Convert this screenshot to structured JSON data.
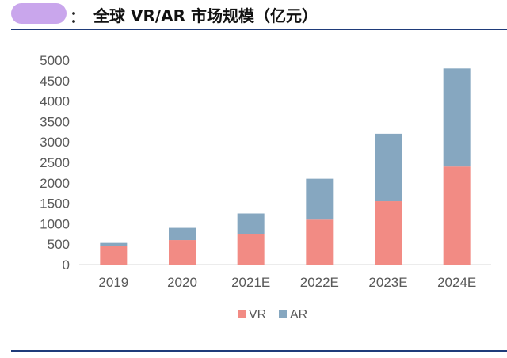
{
  "header": {
    "colon": "：",
    "title": "全球 VR/AR 市场规模（亿元）"
  },
  "colors": {
    "VR": "#f28b84",
    "AR": "#86a7c0",
    "title_rule": "#1f3b7a"
  },
  "chart_data": {
    "type": "bar",
    "stacked": true,
    "categories": [
      "2019",
      "2020",
      "2021E",
      "2022E",
      "2023E",
      "2024E"
    ],
    "series": [
      {
        "name": "VR",
        "values": [
          450,
          600,
          750,
          1100,
          1550,
          2400
        ]
      },
      {
        "name": "AR",
        "values": [
          80,
          300,
          500,
          1000,
          1650,
          2400
        ]
      }
    ],
    "ylim": [
      0,
      5000
    ],
    "yticks": [
      "0",
      "500",
      "1000",
      "1500",
      "2000",
      "2500",
      "3000",
      "3500",
      "4000",
      "4500",
      "5000"
    ],
    "grid": false,
    "legend": "bottom",
    "title": "全球 VR/AR 市场规模（亿元）",
    "xlabel": "",
    "ylabel": ""
  }
}
